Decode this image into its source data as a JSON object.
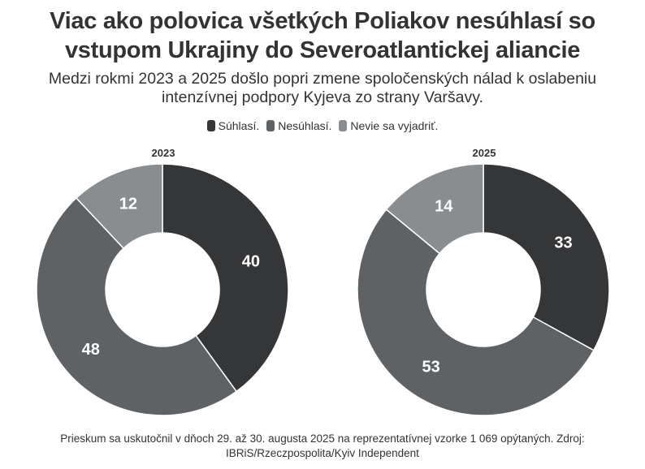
{
  "header": {
    "title_line1": "Viac ako polovica všetkých Poliakov nesúhlasí so",
    "title_line2": "vstupom Ukrajiny do Severoatlantickej aliancie",
    "subtitle_line1": "Medzi rokmi 2023 a 2025 došlo popri zmene spoločenských nálad k oslabeniu",
    "subtitle_line2": "intenzívnej podpory Kyjeva zo strany Varšavy."
  },
  "legend": [
    {
      "label": "Súhlasí.",
      "color": "#353638"
    },
    {
      "label": "Nesúhlasí.",
      "color": "#5f6265"
    },
    {
      "label": "Nevie sa vyjadriť.",
      "color": "#8a8d90"
    }
  ],
  "footer": {
    "line1": "Prieskum sa uskutočnil v dňoch 29. až 30. augusta 2025 na reprezentatívnej vzorke 1 069 opýtaných. Zdroj:",
    "line2": "IBRiS/Rzeczpospolita/Kyiv Independent"
  },
  "chart_data": [
    {
      "type": "pie",
      "subtype": "donut",
      "title": "2023",
      "categories": [
        "Súhlasí.",
        "Nesúhlasí.",
        "Nevie sa vyjadriť."
      ],
      "values": [
        40,
        48,
        12
      ],
      "colors": [
        "#353638",
        "#5f6265",
        "#8a8d90"
      ],
      "start_angle": "12 o'clock, clockwise"
    },
    {
      "type": "pie",
      "subtype": "donut",
      "title": "2025",
      "categories": [
        "Súhlasí.",
        "Nesúhlasí.",
        "Nevie sa vyjadriť."
      ],
      "values": [
        33,
        53,
        14
      ],
      "colors": [
        "#353638",
        "#5f6265",
        "#8a8d90"
      ],
      "start_angle": "12 o'clock, clockwise"
    }
  ]
}
